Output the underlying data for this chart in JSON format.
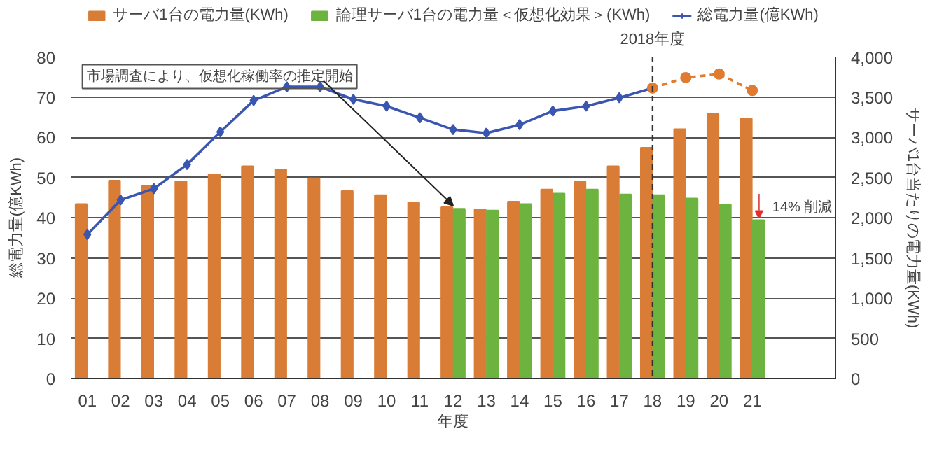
{
  "chart_data": {
    "type": "bar",
    "xlabel": "年度",
    "ylabel": "総電力量(億KWh)",
    "y2label": "サーバ1台当たりの電力量(KWh)",
    "categories": [
      "01",
      "02",
      "03",
      "04",
      "05",
      "06",
      "07",
      "08",
      "09",
      "10",
      "11",
      "12",
      "13",
      "14",
      "15",
      "16",
      "17",
      "18",
      "19",
      "20",
      "21",
      null,
      null
    ],
    "series": [
      {
        "name": "サーバ1台の電力量(KWh)",
        "axis": "y2",
        "color": "#d97c35",
        "values": [
          2170,
          2460,
          2400,
          2450,
          2540,
          2640,
          2600,
          2490,
          2330,
          2280,
          2190,
          2130,
          2100,
          2200,
          2350,
          2450,
          2640,
          2870,
          3100,
          3290,
          3230,
          null,
          null
        ]
      },
      {
        "name": "論理サーバ1台の電力量＜仮想化効果＞(KWh)",
        "axis": "y2",
        "color": "#6db33f",
        "values": [
          null,
          null,
          null,
          null,
          null,
          null,
          null,
          null,
          null,
          null,
          null,
          2110,
          2090,
          2170,
          2300,
          2350,
          2290,
          2280,
          2240,
          2160,
          1970,
          null,
          null
        ]
      },
      {
        "name": "総電力量(億KWh)",
        "type": "line",
        "color": "#3a56b0",
        "marker": "diamond",
        "line_style": "solid",
        "values": [
          35.8,
          44.4,
          47.2,
          53.2,
          61.3,
          69.1,
          72.5,
          72.5,
          69.4,
          67.7,
          64.8,
          61.9,
          61.0,
          63.1,
          66.5,
          67.7,
          69.8,
          72.2,
          null,
          null,
          null,
          null,
          null
        ]
      },
      {
        "type": "line",
        "color": "#e07b30",
        "marker": "circle",
        "line_style": "dashed",
        "values": [
          null,
          null,
          null,
          null,
          null,
          null,
          null,
          null,
          null,
          null,
          null,
          null,
          null,
          null,
          null,
          null,
          null,
          72.2,
          74.8,
          75.7,
          71.6,
          null,
          null
        ]
      }
    ],
    "ylim": [
      0,
      80
    ],
    "yticks": [
      0,
      10,
      20,
      30,
      40,
      50,
      60,
      70,
      80
    ],
    "y2lim": [
      0,
      4000
    ],
    "y2ticks": [
      0,
      500,
      {
        "value": 1000,
        "label": "1,000"
      },
      {
        "value": 1500,
        "label": "1,500"
      },
      {
        "value": 2000,
        "label": "2,000"
      },
      {
        "value": 2500,
        "label": "2,500"
      },
      {
        "value": 3000,
        "label": "3,000"
      },
      {
        "value": 3500,
        "label": "3,500"
      },
      {
        "value": 4000,
        "label": "4,000"
      }
    ],
    "grid": "y",
    "legend": "top",
    "ref_lines": [
      {
        "axis": "x",
        "value": "18",
        "label": "2018年度",
        "line_style": "dashed",
        "color": "#333333"
      }
    ],
    "annotations": [
      {
        "text": "市場調査により、仮想化稼働率の推定開始",
        "x": "12",
        "y": 43
      },
      {
        "text": "14% 削減",
        "x": "21",
        "y": 42.4
      }
    ]
  }
}
